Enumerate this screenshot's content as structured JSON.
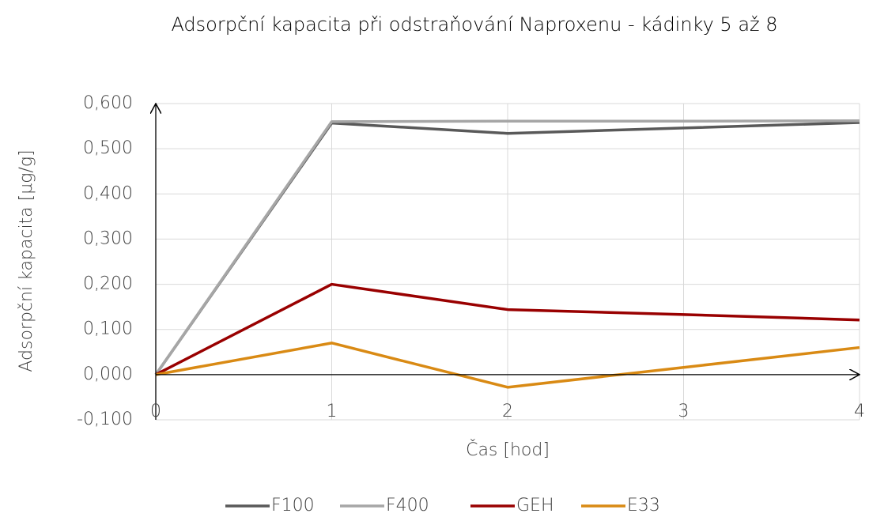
{
  "chart_data": {
    "type": "line",
    "title": "Adsorpční kapacita při odstraňování  Naproxenu - kádinky 5 až 8",
    "x_label": "Čas [hod]",
    "y_label": "Adsorpční kapacita [µg/g]",
    "x": [
      0,
      1,
      2,
      3,
      4
    ],
    "xlim": [
      0,
      4
    ],
    "xticks": [
      0,
      1,
      2,
      3,
      4
    ],
    "ylim": [
      -0.1,
      0.6
    ],
    "yticks": [
      {
        "value": -0.1,
        "label": "-0,100"
      },
      {
        "value": 0,
        "label": "0,000"
      },
      {
        "value": 0.1,
        "label": "0,100"
      },
      {
        "value": 0.2,
        "label": "0,200"
      },
      {
        "value": 0.3,
        "label": "0,300"
      },
      {
        "value": 0.4,
        "label": "0,400"
      },
      {
        "value": 0.5,
        "label": "0,500"
      },
      {
        "value": 0.6,
        "label": "0,600"
      }
    ],
    "grid": true,
    "legend": "bottom",
    "series": [
      {
        "name": "F100",
        "color": "#595959",
        "values": [
          0,
          0.557,
          0.534,
          0.546,
          0.558
        ]
      },
      {
        "name": "F400",
        "color": "#a6a6a6",
        "values": [
          0,
          0.56,
          0.561,
          0.561,
          0.562
        ]
      },
      {
        "name": "GEH",
        "color": "#990000",
        "values": [
          0,
          0.2,
          0.144,
          0.133,
          0.121
        ]
      },
      {
        "name": "E33",
        "color": "#d98a14",
        "values": [
          0,
          0.07,
          -0.028,
          0.016,
          0.06
        ]
      }
    ]
  }
}
